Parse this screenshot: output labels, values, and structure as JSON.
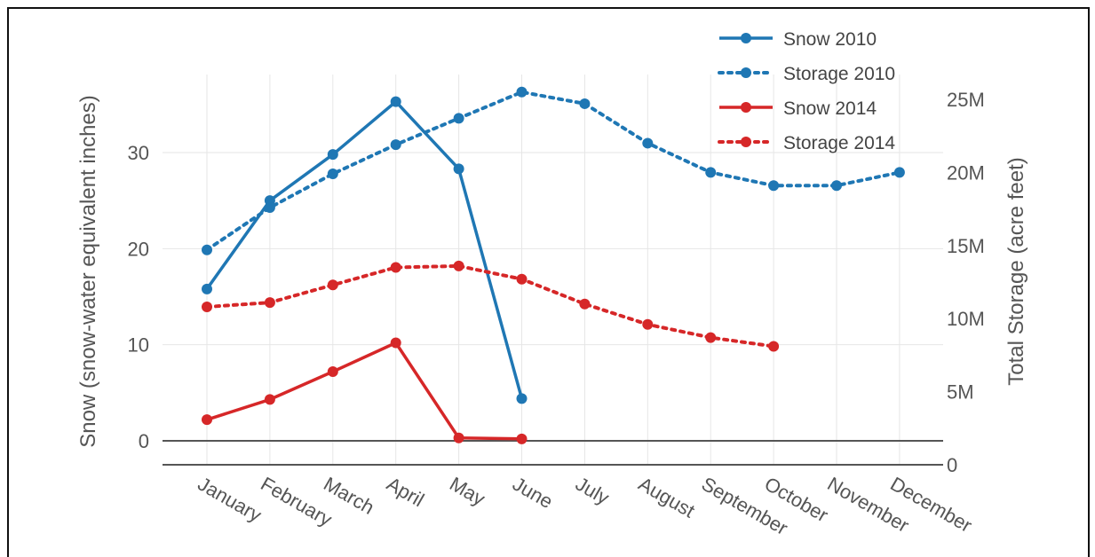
{
  "chart_data": {
    "type": "line",
    "categories": [
      "January",
      "February",
      "March",
      "April",
      "May",
      "June",
      "July",
      "August",
      "September",
      "October",
      "November",
      "December"
    ],
    "y_left": {
      "label": "Snow (snow-water equivalent inches)",
      "ticks": [
        "0",
        "10",
        "20",
        "30"
      ],
      "tick_values": [
        0,
        10,
        20,
        30
      ],
      "range": [
        -2.5,
        37
      ]
    },
    "y_right": {
      "label": "Total Storage (acre feet)",
      "ticks": [
        "0",
        "5M",
        "10M",
        "15M",
        "20M",
        "25M"
      ],
      "tick_values": [
        0,
        5000000,
        10000000,
        15000000,
        20000000,
        25000000
      ],
      "range": [
        0,
        27000000
      ]
    },
    "grid": true,
    "legend_position": "top-right",
    "series": [
      {
        "name": "Snow 2010",
        "axis": "left",
        "dash": "solid",
        "color": "#1f77b4",
        "values": [
          15.8,
          25.0,
          29.8,
          35.3,
          28.3,
          4.4,
          null,
          null,
          null,
          null,
          null,
          null
        ]
      },
      {
        "name": "Storage 2010",
        "axis": "right",
        "dash": "dot",
        "color": "#1f77b4",
        "values": [
          14.7,
          17.6,
          19.9,
          21.9,
          23.7,
          25.5,
          24.7,
          22.0,
          20.0,
          19.1,
          19.1,
          20.0
        ]
      },
      {
        "name": "Snow 2014",
        "axis": "left",
        "dash": "solid",
        "color": "#d62728",
        "values": [
          2.2,
          4.3,
          7.2,
          10.2,
          0.3,
          0.2,
          null,
          null,
          null,
          null,
          null,
          null
        ]
      },
      {
        "name": "Storage 2014",
        "axis": "right",
        "dash": "dot",
        "color": "#d62728",
        "values": [
          10.8,
          11.1,
          12.3,
          13.5,
          13.6,
          12.7,
          11.0,
          9.6,
          8.7,
          8.1,
          null,
          null
        ]
      }
    ],
    "value_units_note_right_axis_millions": true
  }
}
